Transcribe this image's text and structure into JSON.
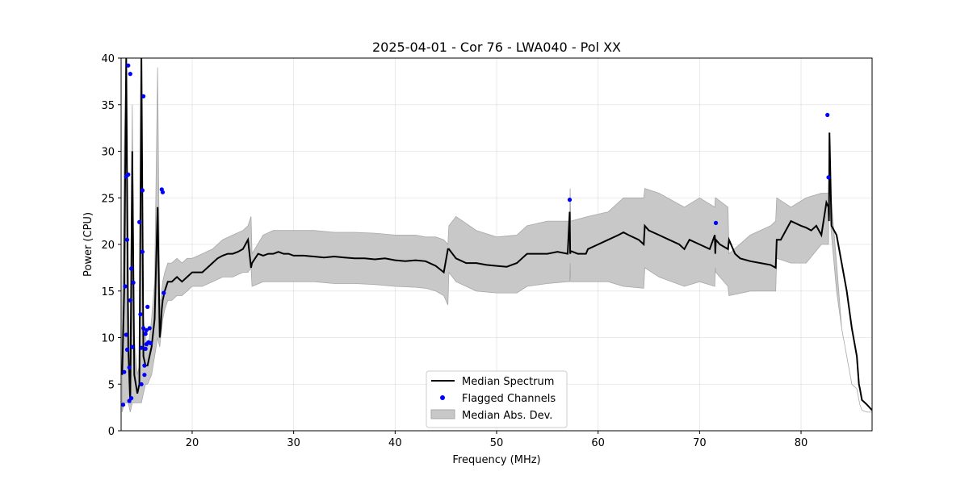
{
  "chart_data": {
    "type": "line",
    "title": "2025-04-01 - Cor 76 - LWA040 - Pol XX",
    "xlabel": "Frequency (MHz)",
    "ylabel": "Power (CPU)",
    "xlim": [
      13,
      87
    ],
    "ylim": [
      0,
      40
    ],
    "xticks": [
      20,
      30,
      40,
      50,
      60,
      70,
      80
    ],
    "yticks": [
      0,
      5,
      10,
      15,
      20,
      25,
      30,
      35,
      40
    ],
    "xtick_labels": [
      "20",
      "30",
      "40",
      "50",
      "60",
      "70",
      "80"
    ],
    "ytick_labels": [
      "0",
      "5",
      "10",
      "15",
      "20",
      "25",
      "30",
      "35",
      "40"
    ],
    "grid": true,
    "legend_position": "lower-center",
    "legend": [
      "Median Spectrum",
      "Flagged Channels",
      "Median Abs. Dev."
    ],
    "series": [
      {
        "name": "Median Spectrum",
        "color": "#000000",
        "x": [
          13.1,
          13.3,
          13.5,
          13.7,
          13.9,
          14.1,
          14.3,
          14.6,
          14.8,
          15.0,
          15.2,
          15.4,
          15.6,
          15.8,
          16.0,
          16.3,
          16.6,
          16.8,
          16.9,
          17.0,
          17.1,
          17.3,
          17.6,
          18.0,
          18.5,
          19.0,
          19.5,
          20.0,
          20.5,
          21.0,
          21.5,
          22.0,
          22.5,
          23.0,
          23.5,
          24.0,
          24.5,
          25.0,
          25.5,
          25.8,
          25.9,
          26.5,
          27.0,
          27.5,
          28.0,
          28.5,
          29.0,
          29.5,
          30.0,
          31.0,
          32.0,
          33.0,
          34.0,
          35.0,
          36.0,
          37.0,
          38.0,
          39.0,
          40.0,
          41.0,
          42.0,
          43.0,
          44.0,
          44.8,
          45.2,
          45.3,
          46.0,
          47.0,
          48.0,
          49.0,
          50.0,
          51.0,
          52.0,
          52.5,
          53.0,
          54.0,
          55.0,
          56.0,
          57.0,
          57.2,
          57.25,
          57.3,
          58.0,
          58.8,
          59.0,
          60.0,
          61.0,
          62.0,
          62.5,
          63.0,
          64.0,
          64.5,
          64.6,
          65.0,
          66.0,
          67.0,
          68.0,
          68.5,
          69.0,
          70.0,
          71.0,
          71.5,
          71.55,
          71.6,
          72.0,
          72.8,
          72.9,
          73.5,
          74.0,
          75.0,
          76.0,
          77.0,
          77.5,
          77.6,
          78.0,
          79.0,
          80.0,
          80.5,
          81.0,
          81.5,
          82.0,
          82.5,
          82.7,
          82.75,
          82.8,
          83.0,
          83.5,
          84.0,
          84.5,
          85.0,
          85.5,
          85.7,
          85.8,
          86.0,
          86.5,
          87.0
        ],
        "y": [
          6,
          15,
          40,
          9,
          3,
          30,
          6,
          4,
          5,
          40,
          8,
          7,
          7,
          8,
          9,
          12,
          24,
          10,
          11,
          13,
          14,
          15,
          16,
          16,
          16.5,
          16,
          16.5,
          17,
          17,
          17,
          17.5,
          18,
          18.5,
          18.8,
          19,
          19,
          19.2,
          19.5,
          20.5,
          17.5,
          18,
          19,
          18.8,
          19,
          19,
          19.2,
          19,
          19,
          18.8,
          18.8,
          18.7,
          18.6,
          18.7,
          18.6,
          18.5,
          18.5,
          18.4,
          18.5,
          18.3,
          18.2,
          18.3,
          18.2,
          17.7,
          17,
          19.5,
          19.5,
          18.5,
          18,
          18,
          17.8,
          17.7,
          17.6,
          18,
          18.5,
          19,
          19,
          19,
          19.2,
          19,
          23.5,
          19,
          19.3,
          19,
          19,
          19.5,
          20,
          20.5,
          21,
          21.3,
          21,
          20.5,
          20,
          22,
          21.5,
          21,
          20.5,
          20,
          19.5,
          20.5,
          20,
          19.5,
          21,
          19,
          20.5,
          20,
          19.5,
          20.5,
          19,
          18.5,
          18.2,
          18,
          17.8,
          17.5,
          20.5,
          20.5,
          22.5,
          22,
          21.8,
          21.5,
          22,
          21,
          24.5,
          24,
          22.5,
          32,
          22,
          21,
          18,
          15,
          11,
          8,
          5,
          4.5,
          3.3,
          2.8,
          2.2
        ]
      },
      {
        "name": "Flagged Channels",
        "color": "#0000ff",
        "x": [
          13.2,
          13.3,
          13.4,
          13.5,
          13.5,
          13.6,
          13.6,
          13.7,
          13.7,
          13.8,
          13.8,
          13.9,
          13.9,
          14.0,
          14.0,
          14.1,
          14.2,
          14.8,
          14.9,
          15.0,
          15.0,
          15.1,
          15.1,
          15.2,
          15.2,
          15.3,
          15.3,
          15.4,
          15.4,
          15.5,
          15.5,
          15.6,
          15.7,
          15.8,
          15.9,
          17.0,
          17.1,
          17.2,
          57.2,
          71.6,
          82.6,
          82.7
        ],
        "y": [
          2.8,
          6.3,
          15.5,
          27.3,
          10.3,
          8.7,
          20.5,
          39.2,
          27.5,
          6.8,
          3.2,
          14,
          38.3,
          17.4,
          3.5,
          9,
          15.9,
          22.4,
          12.5,
          8.9,
          5.0,
          25.8,
          19.2,
          35.9,
          11,
          7,
          6,
          8.8,
          10.4,
          9.3,
          10.8,
          13.3,
          9.5,
          11.0,
          9.4,
          25.9,
          25.6,
          14.8,
          24.8,
          22.3,
          33.9,
          27.2
        ]
      }
    ],
    "band": {
      "name": "Median Abs. Dev.",
      "color": "#808080",
      "x": [
        13.1,
        13.3,
        13.5,
        13.7,
        13.9,
        14.1,
        14.3,
        14.6,
        14.8,
        15.0,
        15.2,
        15.4,
        15.6,
        15.8,
        16.0,
        16.3,
        16.6,
        16.8,
        16.9,
        17.0,
        17.1,
        17.3,
        17.6,
        18.0,
        18.5,
        19.0,
        19.5,
        20.0,
        21.0,
        22.0,
        23.0,
        24.0,
        25.0,
        25.5,
        25.8,
        25.9,
        27.0,
        28.0,
        29.0,
        30.0,
        32.0,
        34.0,
        36.0,
        38.0,
        40.0,
        42.0,
        43.0,
        44.0,
        44.8,
        45.2,
        45.3,
        46.0,
        48.0,
        50.0,
        52.0,
        53.0,
        55.0,
        57.0,
        57.2,
        57.25,
        57.3,
        59.0,
        61.0,
        62.5,
        64.5,
        64.6,
        66.0,
        68.5,
        70.0,
        71.5,
        71.55,
        71.6,
        72.8,
        72.9,
        75.0,
        77.0,
        77.5,
        77.6,
        79.0,
        80.5,
        82.0,
        82.7,
        82.75,
        83.0,
        83.5,
        84.0,
        84.5,
        85.0,
        85.5,
        85.7,
        85.8,
        86.0,
        86.5,
        87.0
      ],
      "lower": [
        2,
        3,
        3,
        3,
        2,
        3,
        3,
        3,
        3,
        3,
        4,
        5,
        5,
        5.5,
        6,
        8,
        10,
        9,
        10,
        11,
        12,
        13,
        14,
        14,
        14.5,
        14.5,
        15,
        15.5,
        15.5,
        16,
        16.5,
        16.5,
        17,
        17,
        17.5,
        15.5,
        16,
        16,
        16,
        16,
        16,
        15.8,
        15.8,
        15.7,
        15.5,
        15.4,
        15.3,
        15,
        14.5,
        13.5,
        17,
        16,
        15,
        14.8,
        14.8,
        15.5,
        15.8,
        16,
        16,
        18,
        16,
        16,
        16,
        15.5,
        15.3,
        17.5,
        16.5,
        15.5,
        16,
        15.5,
        17.5,
        17,
        15.5,
        14.5,
        15,
        15,
        15,
        18.5,
        18,
        18,
        20,
        20,
        25,
        21,
        15,
        11,
        8,
        5,
        4.5,
        3.3,
        2.8,
        2.2,
        2,
        2
      ],
      "upper": [
        10,
        30,
        40,
        15,
        6,
        35,
        10,
        6,
        7,
        40,
        12,
        10,
        9,
        10,
        12,
        16,
        39,
        14,
        14,
        15,
        16,
        17,
        18,
        18,
        18.5,
        18,
        18.5,
        18.5,
        19,
        19.5,
        20.5,
        21,
        21.5,
        22,
        23,
        19,
        21,
        21.5,
        21.5,
        21.5,
        21.5,
        21.3,
        21.3,
        21.2,
        21,
        21,
        20.8,
        20.8,
        20.5,
        20,
        22,
        23,
        21.5,
        20.8,
        21,
        22,
        22.5,
        22.5,
        22.5,
        26,
        22.5,
        23,
        23.5,
        25,
        25,
        26,
        25.5,
        24,
        25,
        24,
        25,
        25,
        24,
        19,
        21,
        22,
        22.5,
        25,
        24,
        25,
        25.5,
        25.5,
        28,
        24.5,
        18,
        11,
        8,
        5,
        4.5,
        3.3,
        2.8,
        2.2,
        2,
        2
      ]
    }
  }
}
